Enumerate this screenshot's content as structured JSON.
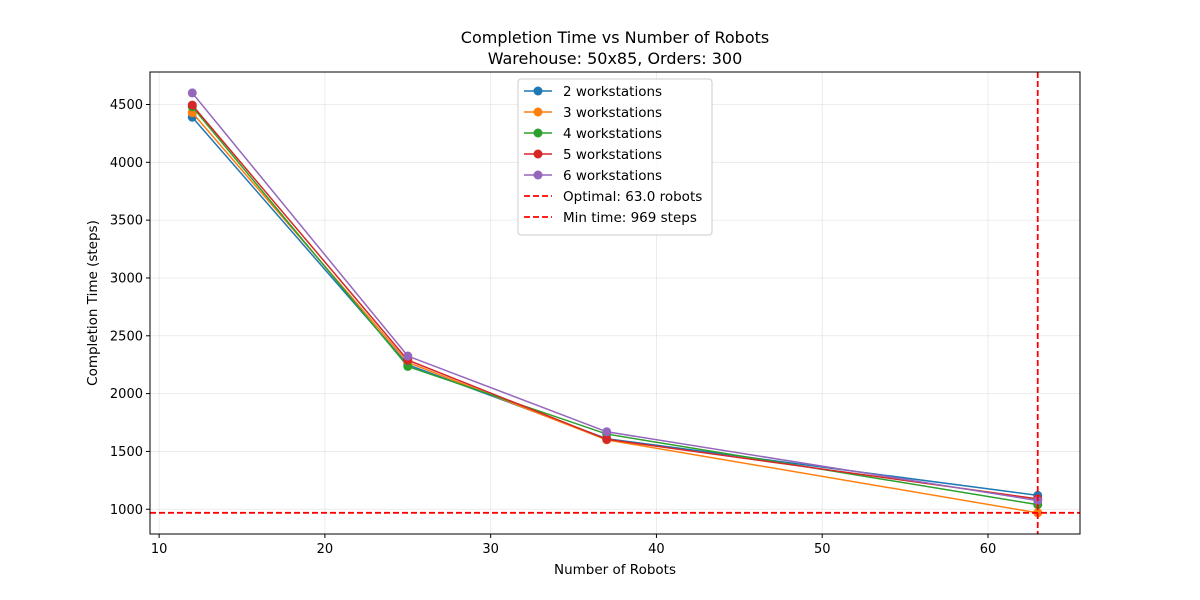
{
  "chart_data": {
    "type": "line",
    "title": "Completion Time vs Number of Robots",
    "subtitle": "Warehouse: 50x85, Orders: 300",
    "xlabel": "Number of Robots",
    "ylabel": "Completion Time (steps)",
    "xlim": [
      9.45,
      65.55
    ],
    "ylim": [
      786,
      4781
    ],
    "xticks": [
      10,
      20,
      30,
      40,
      50,
      60
    ],
    "yticks": [
      1000,
      1500,
      2000,
      2500,
      3000,
      3500,
      4000,
      4500
    ],
    "grid": true,
    "legend_position": "upper center",
    "x": [
      12,
      25,
      37,
      63
    ],
    "series": [
      {
        "name": "2 workstations",
        "color": "#1f77b4",
        "values": [
          4390,
          2250,
          1610,
          1120
        ]
      },
      {
        "name": "3 workstations",
        "color": "#ff7f0e",
        "values": [
          4430,
          2270,
          1600,
          969
        ]
      },
      {
        "name": "4 workstations",
        "color": "#2ca02c",
        "values": [
          4480,
          2235,
          1650,
          1040
        ]
      },
      {
        "name": "5 workstations",
        "color": "#d62728",
        "values": [
          4495,
          2290,
          1605,
          1090
        ]
      },
      {
        "name": "6 workstations",
        "color": "#9467bd",
        "values": [
          4600,
          2325,
          1670,
          1075
        ]
      }
    ],
    "reference_lines": [
      {
        "name": "Optimal: 63.0 robots",
        "orientation": "vertical",
        "value": 63.0,
        "color": "#ff0000"
      },
      {
        "name": "Min time: 969 steps",
        "orientation": "horizontal",
        "value": 969,
        "color": "#ff0000"
      }
    ]
  }
}
